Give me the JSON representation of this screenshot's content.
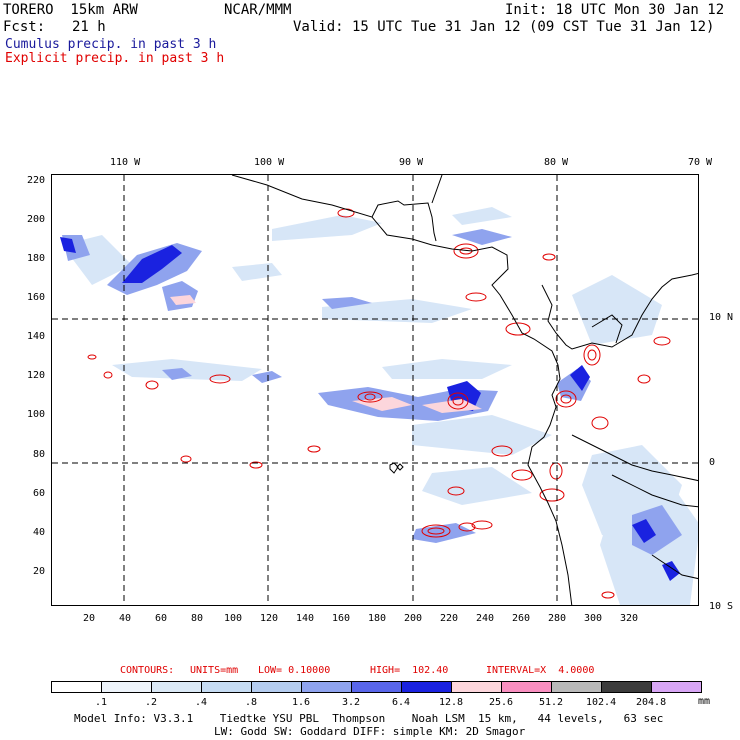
{
  "header": {
    "model": "TORERO  15km ARW",
    "org": "NCAR/MMM",
    "init": "Init: 18 UTC Mon 30 Jan 12",
    "fcst_label": "Fcst:",
    "fcst_value": "21 h",
    "valid": "Valid: 15 UTC Tue 31 Jan 12 (09 CST Tue 31 Jan 12)"
  },
  "legend": {
    "cumulus": "Cumulus precip. in past 3 h",
    "explicit": "Explicit precip. in past 3 h"
  },
  "map": {
    "lon_labels": [
      "110 W",
      "100 W",
      "90 W",
      "80 W",
      "70 W"
    ],
    "lat_labels": [
      "10 N",
      "0",
      "10 S"
    ],
    "x_ticks": [
      "20",
      "40",
      "60",
      "80",
      "100",
      "120",
      "140",
      "160",
      "180",
      "200",
      "220",
      "240",
      "260",
      "280",
      "300",
      "320"
    ],
    "y_ticks": [
      "220",
      "200",
      "180",
      "160",
      "140",
      "120",
      "100",
      "80",
      "60",
      "40",
      "20"
    ]
  },
  "contours": {
    "label": "CONTOURS:",
    "units": "UNITS=mm",
    "low": "LOW= 0.10000",
    "high": "HIGH=  102.40",
    "interval": "INTERVAL=X  4.0000"
  },
  "colorbar": {
    "labels": [
      ".1",
      ".2",
      ".4",
      ".8",
      "1.6",
      "3.2",
      "6.4",
      "12.8",
      "25.6",
      "51.2",
      "102.4",
      "204.8"
    ],
    "unit": "mm",
    "colors": [
      "#ffffff",
      "#eef4fb",
      "#dbe9f6",
      "#c6dcf3",
      "#b5cdf0",
      "#8fa3ee",
      "#5966ea",
      "#1a22e0",
      "#fcd6dc",
      "#f98fc0",
      "#b9b9b9",
      "#3c3c3c",
      "#d8a6f5"
    ]
  },
  "model_info": {
    "line1": "Model Info: V3.3.1    Tiedtke YSU PBL  Thompson    Noah LSM  15 km,   44 levels,   63 sec",
    "line2": "LW: Godd SW: Goddard DIFF: simple KM: 2D Smagor"
  }
}
